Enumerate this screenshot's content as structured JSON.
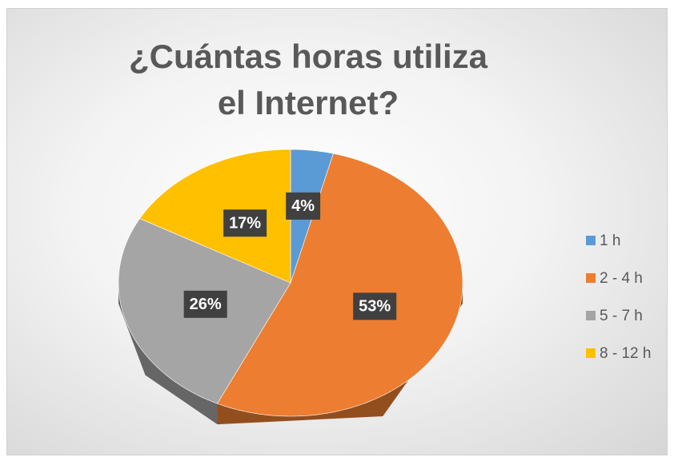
{
  "chart_data": {
    "type": "pie",
    "title": "¿Cuántas horas utiliza el Internet?",
    "categories": [
      "1 h",
      "2 - 4 h",
      "5 - 7 h",
      "8 - 12 h"
    ],
    "values": [
      4,
      53,
      26,
      17
    ],
    "value_labels": [
      "4%",
      "53%",
      "26%",
      "17%"
    ],
    "colors": [
      "#5b9bd5",
      "#ed7d31",
      "#a5a5a5",
      "#ffc000"
    ],
    "legend": "right"
  }
}
